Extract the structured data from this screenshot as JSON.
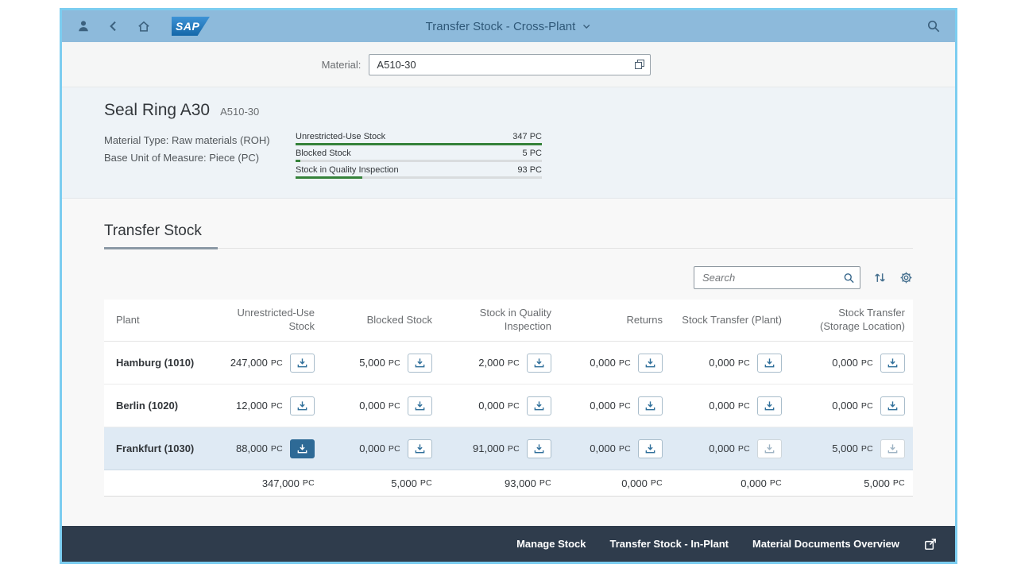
{
  "shell": {
    "title": "Transfer Stock - Cross-Plant",
    "logo_text": "SAP"
  },
  "filter": {
    "material_label": "Material:",
    "material_value": "A510-30"
  },
  "object_header": {
    "title": "Seal Ring A30",
    "subtitle": "A510-30",
    "attr1": "Material Type: Raw materials (ROH)",
    "attr2": "Base Unit of Measure: Piece (PC)",
    "stocks": [
      {
        "label": "Unrestricted-Use Stock",
        "value": "347 PC",
        "pct": 100
      },
      {
        "label": "Blocked Stock",
        "value": "5 PC",
        "pct": 2
      },
      {
        "label": "Stock in Quality Inspection",
        "value": "93 PC",
        "pct": 27
      }
    ]
  },
  "section": {
    "title": "Transfer Stock"
  },
  "toolbar": {
    "search_placeholder": "Search"
  },
  "table": {
    "unit": "PC",
    "columns": [
      "Plant",
      "Unrestricted-Use Stock",
      "Blocked Stock",
      "Stock in Quality Inspection",
      "Returns",
      "Stock Transfer (Plant)",
      "Stock Transfer (Storage Location)"
    ],
    "rows": [
      {
        "plant": "Hamburg (1010)",
        "values": [
          "247,000",
          "5,000",
          "2,000",
          "0,000",
          "0,000",
          "0,000"
        ]
      },
      {
        "plant": "Berlin (1020)",
        "values": [
          "12,000",
          "0,000",
          "0,000",
          "0,000",
          "0,000",
          "0,000"
        ]
      },
      {
        "plant": "Frankfurt (1030)",
        "values": [
          "88,000",
          "0,000",
          "91,000",
          "0,000",
          "0,000",
          "5,000"
        ]
      }
    ],
    "totals": [
      "347,000",
      "5,000",
      "93,000",
      "0,000",
      "0,000",
      "5,000"
    ]
  },
  "footer": {
    "links": [
      "Manage Stock",
      "Transfer Stock - In-Plant",
      "Material Documents Overview"
    ]
  }
}
